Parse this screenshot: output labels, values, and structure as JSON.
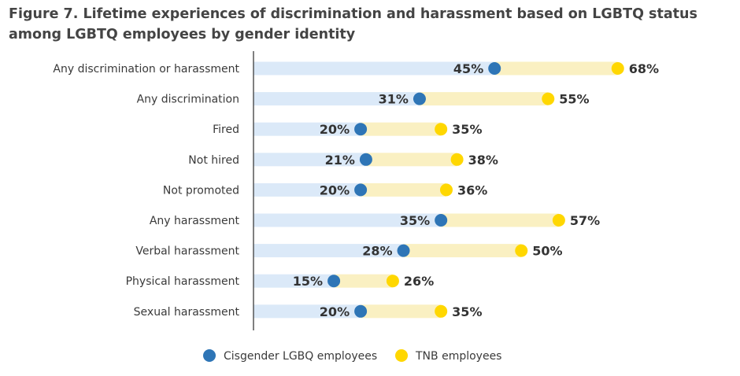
{
  "chart_data": {
    "type": "dot",
    "title": "Figure 7. Lifetime experiences of discrimination and harassment based on LGBTQ status among LGBTQ employees by gender identity",
    "categories": [
      "Any discrimination or harassment",
      "Any discrimination",
      "Fired",
      "Not hired",
      "Not promoted",
      "Any harassment",
      "Verbal harassment",
      "Physical harassment",
      "Sexual harassment"
    ],
    "series": [
      {
        "name": "Cisgender LGBQ employees",
        "values": [
          45,
          31,
          20,
          21,
          20,
          35,
          28,
          15,
          20
        ],
        "color": "#2e75b6"
      },
      {
        "name": "TNB employees",
        "values": [
          68,
          55,
          35,
          38,
          36,
          57,
          50,
          26,
          35
        ],
        "color": "#ffd700"
      }
    ],
    "value_suffix": "%",
    "xlim": [
      0,
      100
    ],
    "colors": {
      "bar_light_blue": "#dbe9f8",
      "bar_light_yellow": "#faf0c2",
      "axis": "#555555"
    },
    "legend": "bottom-center"
  }
}
